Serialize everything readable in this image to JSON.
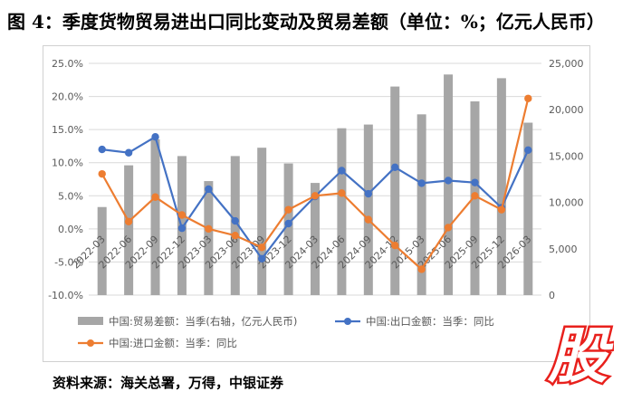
{
  "title": "图 4：季度货物贸易进出口同比变动及贸易差额（单位：%；亿元人民币）",
  "source": "资料来源：海关总署，万得，中银证券",
  "stamp_text": "股",
  "colors": {
    "bar": "#a6a6a6",
    "export": "#4472c4",
    "import": "#ed7d31",
    "stamp": "#e8201c",
    "grid": "#d9d9d9",
    "text": "#595959"
  },
  "chart_data": {
    "type": "bar",
    "categories": [
      "2022-03",
      "2022-06",
      "2022-09",
      "2022-12",
      "2023-03",
      "2023-06",
      "2023-09",
      "2023-12",
      "2024-03",
      "2024-06",
      "2024-09",
      "2024-12",
      "2025-03",
      "2025-06",
      "2025-09",
      "2025-12",
      "2026-03"
    ],
    "left_axis": {
      "min": -10,
      "max": 25,
      "step": 5,
      "tick_labels": [
        "-10.0%",
        "-5.0%",
        "0.0%",
        "5.0%",
        "10.0%",
        "15.0%",
        "20.0%",
        "25.0%"
      ]
    },
    "right_axis": {
      "min": 0,
      "max": 25000,
      "step": 5000,
      "tick_labels": [
        "0",
        "5,000",
        "10,000",
        "15,000",
        "20,000",
        "25,000"
      ]
    },
    "grid": true,
    "legend_position": "bottom",
    "series": [
      {
        "name": "中国:贸易差额：当季(右轴，亿元人民币)",
        "type": "bar",
        "axis": "right",
        "values": [
          9500,
          14000,
          16800,
          15000,
          12300,
          15000,
          15900,
          14200,
          12100,
          18000,
          18400,
          22500,
          19500,
          23800,
          20900,
          23400,
          18600
        ]
      },
      {
        "name": "中国:出口金额：当季：同比",
        "type": "line",
        "axis": "left",
        "values": [
          12.0,
          11.5,
          13.9,
          0.1,
          6.0,
          1.2,
          -4.5,
          0.8,
          4.9,
          8.8,
          5.3,
          9.3,
          6.9,
          7.3,
          7.0,
          3.2,
          11.9
        ]
      },
      {
        "name": "中国:进口金额：当季：同比",
        "type": "line",
        "axis": "left",
        "values": [
          8.3,
          1.1,
          4.8,
          2.1,
          0.0,
          -1.0,
          -2.8,
          2.9,
          5.0,
          5.4,
          1.4,
          -2.5,
          -6.1,
          0.2,
          5.0,
          2.9,
          19.7
        ]
      }
    ]
  }
}
